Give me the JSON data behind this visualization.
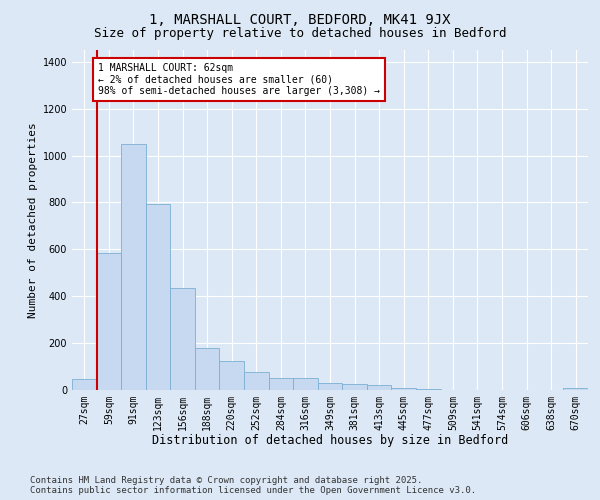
{
  "title1": "1, MARSHALL COURT, BEDFORD, MK41 9JX",
  "title2": "Size of property relative to detached houses in Bedford",
  "xlabel": "Distribution of detached houses by size in Bedford",
  "ylabel": "Number of detached properties",
  "categories": [
    "27sqm",
    "59sqm",
    "91sqm",
    "123sqm",
    "156sqm",
    "188sqm",
    "220sqm",
    "252sqm",
    "284sqm",
    "316sqm",
    "349sqm",
    "381sqm",
    "413sqm",
    "445sqm",
    "477sqm",
    "509sqm",
    "541sqm",
    "574sqm",
    "606sqm",
    "638sqm",
    "670sqm"
  ],
  "values": [
    45,
    585,
    1050,
    795,
    435,
    180,
    125,
    75,
    50,
    50,
    30,
    25,
    20,
    10,
    5,
    0,
    0,
    0,
    0,
    0,
    10
  ],
  "bar_color": "#c6d9f0",
  "bar_edge_color": "#7bafd4",
  "vline_color": "#cc0000",
  "annotation_text": "1 MARSHALL COURT: 62sqm\n← 2% of detached houses are smaller (60)\n98% of semi-detached houses are larger (3,308) →",
  "annotation_box_color": "#ffffff",
  "annotation_box_edge_color": "#cc0000",
  "ylim": [
    0,
    1450
  ],
  "background_color": "#dce8f5",
  "plot_background": "#dce8f5",
  "footer1": "Contains HM Land Registry data © Crown copyright and database right 2025.",
  "footer2": "Contains public sector information licensed under the Open Government Licence v3.0.",
  "title_fontsize": 10,
  "subtitle_fontsize": 9,
  "xlabel_fontsize": 8.5,
  "ylabel_fontsize": 8,
  "tick_fontsize": 7,
  "footer_fontsize": 6.5
}
